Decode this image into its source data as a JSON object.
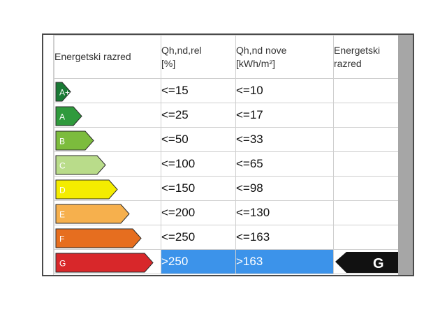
{
  "header": {
    "col1": "Energetski razred",
    "col2_line1": "Qh,nd,rel",
    "col2_line2": "[%]",
    "col3_line1": "Qh,nd nove",
    "col3_line2": "[kWh/m²]",
    "col4_line1": "Energetski",
    "col4_line2": "razred"
  },
  "rows": [
    {
      "cls": "A+",
      "rel": "<=15",
      "nove": "<=10",
      "color": "#1a7a35"
    },
    {
      "cls": "A",
      "rel": "<=25",
      "nove": "<=17",
      "color": "#2f9a3c"
    },
    {
      "cls": "B",
      "rel": "<=50",
      "nove": "<=33",
      "color": "#7cbc3d"
    },
    {
      "cls": "C",
      "rel": "<=100",
      "nove": "<=65",
      "color": "#b9dc8a"
    },
    {
      "cls": "D",
      "rel": "<=150",
      "nove": "<=98",
      "color": "#f4ec00"
    },
    {
      "cls": "E",
      "rel": "<=200",
      "nove": "<=130",
      "color": "#f6b04d"
    },
    {
      "cls": "F",
      "rel": "<=250",
      "nove": "<=163",
      "color": "#e66e1f"
    },
    {
      "cls": "G",
      "rel": ">250",
      "nove": ">163",
      "color": "#d8272a"
    }
  ],
  "result": {
    "label": "G",
    "color": "#111111"
  },
  "highlight_color": "#3c93ea"
}
